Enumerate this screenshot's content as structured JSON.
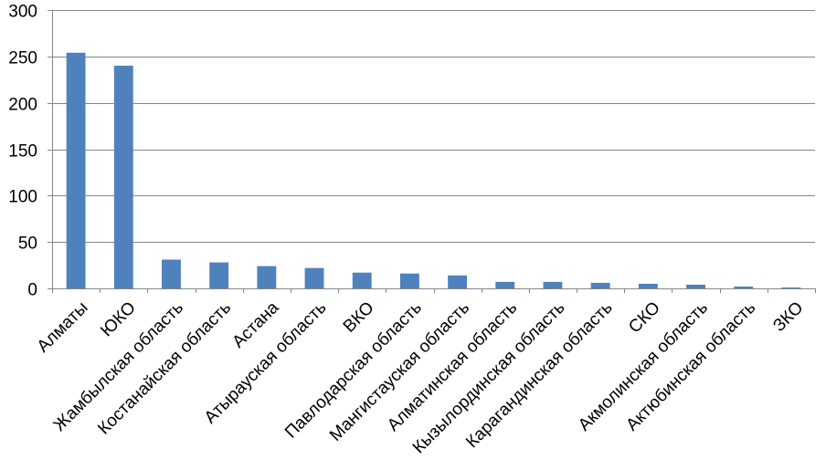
{
  "chart_data": {
    "type": "bar",
    "title": "",
    "xlabel": "",
    "ylabel": "",
    "ylim": [
      0,
      300
    ],
    "yticks": [
      0,
      50,
      100,
      150,
      200,
      250,
      300
    ],
    "grid": true,
    "legend": "none",
    "bar_color": "#4f81bd",
    "categories": [
      "Алматы",
      "ЮКО",
      "Жамбылская область",
      "Костанайская область",
      "Астана",
      "Атырауская область",
      "ВКО",
      "Павлодарская область",
      "Мангистауская область",
      "Алматинская область",
      "Кызылординская область",
      "Карагандинская область",
      "СКО",
      "Акмолинская область",
      "Актюбинская область",
      "ЗКО"
    ],
    "values": [
      254,
      240,
      31,
      28,
      24,
      22,
      17,
      16,
      14,
      7,
      7,
      6,
      5,
      4,
      2,
      1
    ]
  }
}
